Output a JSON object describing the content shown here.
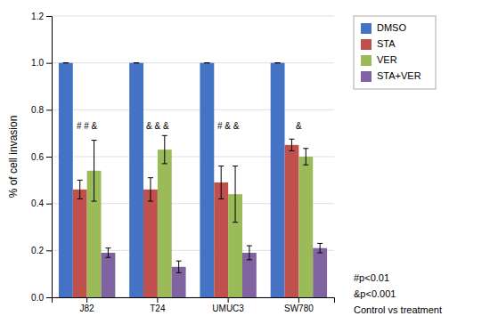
{
  "chart_data": {
    "type": "bar",
    "categories": [
      "J82",
      "T24",
      "UMUC3",
      "SW780"
    ],
    "series": [
      {
        "name": "DMSO",
        "color": "#4472C4",
        "values": [
          1.0,
          1.0,
          1.0,
          1.0
        ],
        "errors": [
          0.0,
          0.0,
          0.0,
          0.0
        ]
      },
      {
        "name": "STA",
        "color": "#C0504D",
        "values": [
          0.46,
          0.46,
          0.49,
          0.65
        ],
        "errors": [
          0.04,
          0.05,
          0.07,
          0.025
        ]
      },
      {
        "name": "VER",
        "color": "#9BBB59",
        "values": [
          0.54,
          0.63,
          0.44,
          0.6
        ],
        "errors": [
          0.13,
          0.06,
          0.12,
          0.035
        ]
      },
      {
        "name": "STA+VER",
        "color": "#8064A2",
        "values": [
          0.19,
          0.13,
          0.19,
          0.21
        ],
        "errors": [
          0.02,
          0.025,
          0.03,
          0.02
        ]
      }
    ],
    "ylabel": "% of cell invasion",
    "ylim": [
      0,
      1.2
    ],
    "yticks": [
      {
        "value": 0,
        "label": "0.0"
      },
      0.2,
      0.4,
      0.6,
      0.8,
      {
        "value": 1.0,
        "label": "1.0"
      },
      1.2
    ],
    "grid": true,
    "legend": "upper right",
    "annotations": [
      {
        "category": "J82",
        "text": "# # &",
        "y": 0.71
      },
      {
        "category": "T24",
        "text": "& & &",
        "y": 0.71
      },
      {
        "category": "UMUC3",
        "text": "# & &",
        "y": 0.71
      },
      {
        "category": "SW780",
        "text": "&",
        "y": 0.71
      }
    ],
    "footnotes": [
      "#p<0.01",
      "&p<0.001",
      "Control vs treatment"
    ]
  }
}
